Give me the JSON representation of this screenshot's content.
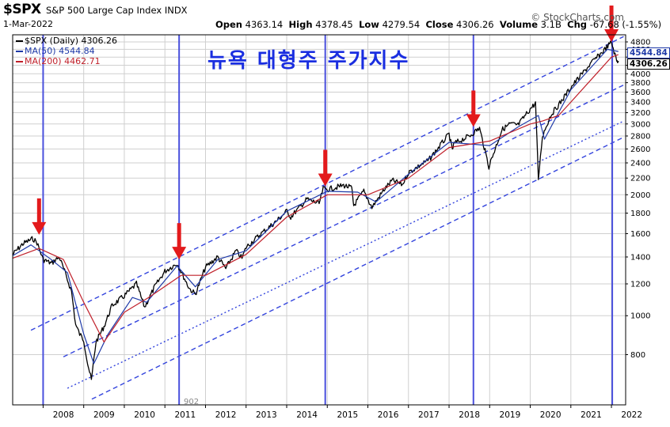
{
  "header": {
    "symbol": "$SPX",
    "index_name": "S&P 500 Large Cap Index",
    "exchange": "INDX",
    "date": "1-Mar-2022",
    "quote": {
      "open_label": "Open",
      "open": "4363.14",
      "high_label": "High",
      "high": "4378.45",
      "low_label": "Low",
      "low": "4279.54",
      "close_label": "Close",
      "close": "4306.26",
      "volume_label": "Volume",
      "volume": "3.1B",
      "chg_label": "Chg",
      "chg": "-67.68 (-1.55%)"
    },
    "watermark": "© StockCharts.com"
  },
  "legend": [
    {
      "text": "$SPX (Daily) 4306.26",
      "color": "#000000"
    },
    {
      "text": "MA(50) 4544.84",
      "color": "#1f3aa8"
    },
    {
      "text": "MA(200) 4462.71",
      "color": "#c0202a"
    }
  ],
  "annotation_title": "뉴욕 대형주 주가지수",
  "last_values": {
    "ma50": "4544.84",
    "price": "4306.26"
  },
  "note_label": "902",
  "colors": {
    "price": "#000000",
    "ma50": "#1f3aa8",
    "ma200": "#c0202a",
    "channel": "#3344dd",
    "vline": "#4a50dd",
    "arrow": "#e31a1c",
    "grid": "#cfcfcf"
  },
  "chart_data": {
    "type": "line",
    "title": "S&P 500 Large Cap Index",
    "y_scale": "log",
    "ylim": [
      600,
      5000
    ],
    "xlim": [
      2007.25,
      2022.35
    ],
    "y_ticks": [
      800,
      1000,
      1200,
      1400,
      1600,
      1800,
      2000,
      2200,
      2400,
      2600,
      2800,
      3000,
      3200,
      3400,
      3600,
      3800,
      4000,
      4200,
      4400,
      4600,
      4800
    ],
    "x_ticks": [
      "2008",
      "2009",
      "2010",
      "2011",
      "2012",
      "2013",
      "2014",
      "2015",
      "2016",
      "2017",
      "2018",
      "2019",
      "2020",
      "2021",
      "2022"
    ],
    "grid": true,
    "series": [
      {
        "name": "$SPX (Daily)",
        "x": [
          2007.25,
          2007.5,
          2007.75,
          2007.85,
          2008.0,
          2008.2,
          2008.4,
          2008.55,
          2008.7,
          2008.8,
          2008.9,
          2009.0,
          2009.1,
          2009.19,
          2009.3,
          2009.5,
          2009.7,
          2010.0,
          2010.3,
          2010.5,
          2010.75,
          2011.0,
          2011.3,
          2011.6,
          2011.75,
          2012.0,
          2012.3,
          2012.5,
          2012.75,
          2012.9,
          2013.0,
          2013.4,
          2013.5,
          2013.75,
          2014.0,
          2014.1,
          2014.5,
          2014.8,
          2014.9,
          2015.0,
          2015.4,
          2015.6,
          2015.65,
          2015.9,
          2016.1,
          2016.4,
          2016.6,
          2016.85,
          2017.0,
          2017.5,
          2018.0,
          2018.08,
          2018.12,
          2018.5,
          2018.75,
          2018.98,
          2019.3,
          2019.5,
          2019.7,
          2020.0,
          2020.13,
          2020.2,
          2020.3,
          2020.5,
          2020.75,
          2021.0,
          2021.5,
          2021.75,
          2022.0,
          2022.13,
          2022.17
        ],
        "values": [
          1420,
          1510,
          1555,
          1520,
          1380,
          1350,
          1400,
          1270,
          1150,
          950,
          900,
          870,
          760,
          690,
          860,
          940,
          1060,
          1120,
          1200,
          1050,
          1180,
          1290,
          1350,
          1170,
          1130,
          1320,
          1400,
          1310,
          1450,
          1390,
          1480,
          1610,
          1640,
          1720,
          1820,
          1760,
          1950,
          1900,
          2070,
          2060,
          2110,
          2080,
          1880,
          2040,
          1860,
          2060,
          2170,
          2120,
          2270,
          2440,
          2830,
          2580,
          2680,
          2800,
          2930,
          2350,
          2900,
          3000,
          2980,
          3270,
          3380,
          2190,
          2800,
          3150,
          3400,
          3700,
          4250,
          4500,
          4790,
          4300,
          4306.26
        ]
      },
      {
        "name": "MA(50)",
        "x": [
          2007.25,
          2007.7,
          2008.2,
          2008.6,
          2009.0,
          2009.25,
          2009.6,
          2010.2,
          2010.55,
          2011.3,
          2011.75,
          2012.3,
          2013.0,
          2014.0,
          2015.0,
          2015.75,
          2016.2,
          2017.0,
          2018.0,
          2019.0,
          2019.7,
          2020.2,
          2020.35,
          2021.0,
          2021.9,
          2022.17
        ],
        "values": [
          1410,
          1500,
          1380,
          1280,
          900,
          760,
          900,
          1110,
          1080,
          1330,
          1180,
          1380,
          1450,
          1820,
          2040,
          2030,
          1920,
          2250,
          2700,
          2650,
          2950,
          3150,
          2750,
          3650,
          4600,
          4544.84
        ]
      },
      {
        "name": "MA(200)",
        "x": [
          2007.25,
          2007.9,
          2008.5,
          2009.0,
          2009.5,
          2010.0,
          2010.6,
          2011.4,
          2012.0,
          2013.0,
          2014.0,
          2015.0,
          2016.0,
          2017.0,
          2018.0,
          2019.0,
          2020.0,
          2020.3,
          2020.7,
          2021.0,
          2022.0,
          2022.17
        ],
        "values": [
          1390,
          1470,
          1380,
          1080,
          860,
          1020,
          1110,
          1260,
          1260,
          1420,
          1760,
          2000,
          2000,
          2200,
          2620,
          2720,
          3000,
          3050,
          3150,
          3400,
          4400,
          4462.71
        ]
      }
    ],
    "annotations": [
      {
        "type": "vertical_line",
        "x": 2008.0
      },
      {
        "type": "vertical_line",
        "x": 2011.35
      },
      {
        "type": "vertical_line",
        "x": 2014.95
      },
      {
        "type": "vertical_line",
        "x": 2018.6
      },
      {
        "type": "vertical_line",
        "x": 2022.02
      },
      {
        "type": "down_arrow",
        "x": 2007.9,
        "y": 1590
      },
      {
        "type": "down_arrow",
        "x": 2011.35,
        "y": 1380
      },
      {
        "type": "down_arrow",
        "x": 2014.95,
        "y": 2100
      },
      {
        "type": "down_arrow",
        "x": 2018.6,
        "y": 2950
      },
      {
        "type": "down_arrow",
        "x": 2022.0,
        "y": 4800
      },
      {
        "type": "channel_dashed",
        "points": [
          [
            2007.7,
            920
          ],
          [
            2022.3,
            4950
          ]
        ]
      },
      {
        "type": "channel_dashed",
        "points": [
          [
            2008.5,
            790
          ],
          [
            2022.3,
            3750
          ]
        ]
      },
      {
        "type": "channel_dotted",
        "points": [
          [
            2008.6,
            660
          ],
          [
            2022.3,
            3050
          ]
        ]
      },
      {
        "type": "channel_dashed",
        "points": [
          [
            2009.2,
            620
          ],
          [
            2022.3,
            2780
          ]
        ]
      }
    ]
  }
}
